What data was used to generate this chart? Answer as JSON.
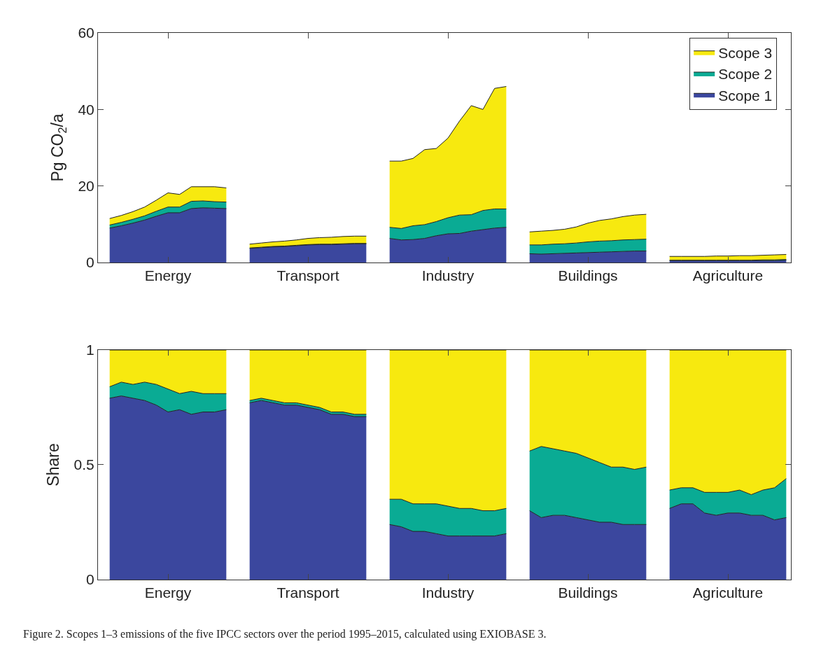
{
  "chart_data": [
    {
      "type": "area",
      "stacked": true,
      "ylabel": "Pg CO$_{2}$/a",
      "ylim": [
        0,
        60
      ],
      "yticks": [
        0,
        20,
        40,
        60
      ],
      "legend": "top right",
      "categories": [
        null,
        null,
        null,
        null,
        null,
        "Energy",
        null,
        null,
        null,
        null,
        null,
        null,
        null,
        null,
        null,
        null,
        null,
        "Transport",
        null,
        null,
        null,
        null,
        null,
        null,
        null,
        null,
        null,
        null,
        null,
        "Industry",
        null,
        null,
        null,
        null,
        null,
        null,
        null,
        null,
        null,
        null,
        null,
        "Buildings",
        null,
        null,
        null,
        null,
        null,
        null,
        null,
        null,
        null,
        null,
        null,
        "Agriculture",
        null,
        null,
        null,
        null,
        null
      ],
      "series": [
        {
          "name": "Scope 1",
          "color": "#3b479e",
          "values": [
            9.0,
            9.6,
            10.3,
            11.1,
            12.1,
            13.0,
            13.0,
            14.1,
            14.3,
            14.2,
            14.1,
            null,
            3.7,
            3.9,
            4.1,
            4.2,
            4.4,
            4.6,
            4.7,
            4.7,
            4.8,
            4.9,
            4.9,
            null,
            6.3,
            5.9,
            6.0,
            6.3,
            7.0,
            7.5,
            7.6,
            8.2,
            8.6,
            9.0,
            9.2,
            null,
            2.3,
            2.2,
            2.3,
            2.4,
            2.5,
            2.6,
            2.7,
            2.8,
            2.9,
            3.0,
            3.0,
            null,
            0.5,
            0.5,
            0.5,
            0.5,
            0.5,
            0.5,
            0.5,
            0.5,
            0.5,
            0.5,
            0.6
          ]
        },
        {
          "name": "Scope 2",
          "color": "#0aab94",
          "values": [
            0.8,
            0.9,
            1.0,
            1.1,
            1.3,
            1.5,
            1.5,
            1.9,
            1.8,
            1.7,
            1.7,
            null,
            0.1,
            0.1,
            0.1,
            0.1,
            0.1,
            0.1,
            0.1,
            0.1,
            0.1,
            0.1,
            0.1,
            null,
            2.9,
            3.0,
            3.6,
            3.6,
            3.7,
            4.2,
            4.8,
            4.3,
            5.0,
            5.0,
            4.8,
            null,
            2.3,
            2.4,
            2.5,
            2.5,
            2.6,
            2.8,
            2.9,
            2.9,
            3.0,
            3.0,
            3.1,
            null,
            0.1,
            0.1,
            0.1,
            0.1,
            0.1,
            0.1,
            0.1,
            0.1,
            0.2,
            0.2,
            0.2
          ]
        },
        {
          "name": "Scope 3",
          "color": "#f7e90f",
          "values": [
            1.7,
            1.8,
            2.0,
            2.3,
            2.9,
            3.7,
            3.3,
            3.8,
            3.7,
            3.9,
            3.7,
            null,
            1.0,
            1.1,
            1.2,
            1.3,
            1.4,
            1.6,
            1.7,
            1.8,
            1.9,
            1.9,
            1.9,
            null,
            17.3,
            17.6,
            17.6,
            19.6,
            19.1,
            20.8,
            24.6,
            28.5,
            26.4,
            31.5,
            32.0,
            null,
            3.4,
            3.6,
            3.6,
            3.8,
            4.2,
            4.9,
            5.4,
            5.7,
            6.1,
            6.4,
            6.5,
            null,
            1.0,
            1.0,
            1.0,
            1.0,
            1.1,
            1.1,
            1.2,
            1.2,
            1.2,
            1.3,
            1.3
          ]
        }
      ]
    },
    {
      "type": "area",
      "stacked": true,
      "ylabel": "Share",
      "ylim": [
        0,
        1
      ],
      "yticks": [
        0,
        0.5,
        1
      ],
      "categories": [
        null,
        null,
        null,
        null,
        null,
        "Energy",
        null,
        null,
        null,
        null,
        null,
        null,
        null,
        null,
        null,
        null,
        null,
        "Transport",
        null,
        null,
        null,
        null,
        null,
        null,
        null,
        null,
        null,
        null,
        null,
        "Industry",
        null,
        null,
        null,
        null,
        null,
        null,
        null,
        null,
        null,
        null,
        null,
        "Buildings",
        null,
        null,
        null,
        null,
        null,
        null,
        null,
        null,
        null,
        null,
        null,
        "Agriculture",
        null,
        null,
        null,
        null,
        null
      ],
      "series": [
        {
          "color": "#3b479e",
          "values": [
            0.79,
            0.8,
            0.79,
            0.78,
            0.76,
            0.73,
            0.74,
            0.72,
            0.73,
            0.73,
            0.74,
            null,
            0.77,
            0.78,
            0.77,
            0.76,
            0.76,
            0.75,
            0.74,
            0.72,
            0.72,
            0.71,
            0.71,
            null,
            0.24,
            0.23,
            0.21,
            0.21,
            0.2,
            0.19,
            0.19,
            0.19,
            0.19,
            0.19,
            0.2,
            null,
            0.3,
            0.27,
            0.28,
            0.28,
            0.27,
            0.26,
            0.25,
            0.25,
            0.24,
            0.24,
            0.24,
            null,
            0.31,
            0.33,
            0.33,
            0.29,
            0.28,
            0.29,
            0.29,
            0.28,
            0.28,
            0.26,
            0.27
          ]
        },
        {
          "color": "#0aab94",
          "values": [
            0.05,
            0.06,
            0.06,
            0.08,
            0.09,
            0.1,
            0.07,
            0.1,
            0.08,
            0.08,
            0.07,
            null,
            0.01,
            0.01,
            0.01,
            0.01,
            0.01,
            0.01,
            0.01,
            0.01,
            0.01,
            0.01,
            0.01,
            null,
            0.11,
            0.12,
            0.12,
            0.12,
            0.13,
            0.13,
            0.12,
            0.12,
            0.11,
            0.11,
            0.11,
            null,
            0.26,
            0.31,
            0.29,
            0.28,
            0.28,
            0.27,
            0.26,
            0.24,
            0.25,
            0.24,
            0.25,
            null,
            0.08,
            0.07,
            0.07,
            0.09,
            0.1,
            0.09,
            0.1,
            0.09,
            0.11,
            0.14,
            0.17
          ]
        },
        {
          "color": "#f7e90f",
          "values": [
            0.16,
            0.14,
            0.15,
            0.14,
            0.15,
            0.17,
            0.19,
            0.18,
            0.19,
            0.19,
            0.19,
            null,
            0.22,
            0.21,
            0.22,
            0.23,
            0.23,
            0.24,
            0.25,
            0.27,
            0.27,
            0.28,
            0.28,
            null,
            0.65,
            0.65,
            0.67,
            0.67,
            0.67,
            0.68,
            0.69,
            0.69,
            0.7,
            0.7,
            0.69,
            null,
            0.44,
            0.42,
            0.43,
            0.44,
            0.45,
            0.47,
            0.49,
            0.51,
            0.51,
            0.52,
            0.51,
            null,
            0.61,
            0.6,
            0.6,
            0.62,
            0.62,
            0.62,
            0.61,
            0.63,
            0.61,
            0.6,
            0.56
          ]
        }
      ],
      "annotations": [
        "Figure 2. Scopes 1–3 emissions of the five IPCC sectors over the period 1995–2015, calculated using EXIOBASE 3."
      ]
    }
  ]
}
